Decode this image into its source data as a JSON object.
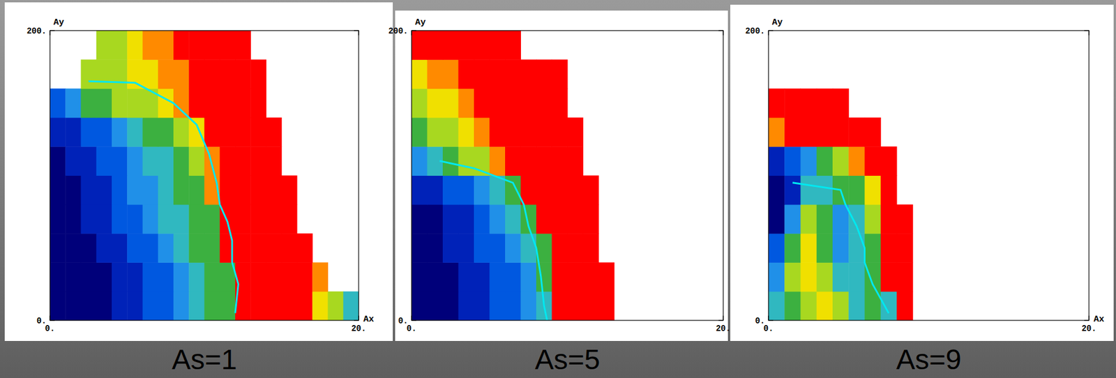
{
  "chart_data": [
    {
      "type": "heatmap",
      "title": "As=1",
      "x_label": "Ax",
      "y_label": "Ay",
      "xlim": [
        0,
        20
      ],
      "ylim": [
        0,
        200
      ],
      "xticks": [
        {
          "value": 0,
          "label": "0."
        },
        {
          "value": 20,
          "label": "20."
        }
      ],
      "yticks": [
        {
          "value": 0,
          "label": "0."
        },
        {
          "value": 200,
          "label": "200."
        }
      ],
      "xbins": [
        0,
        1,
        2,
        3,
        4,
        5,
        6,
        7,
        8,
        9,
        10,
        11,
        12,
        13,
        14,
        15,
        16,
        17,
        18,
        19,
        20
      ],
      "ybins": [
        0,
        20,
        40,
        60,
        80,
        100,
        120,
        140,
        160,
        180,
        200
      ],
      "zlim": [
        0,
        9
      ],
      "cells": [
        [
          0,
          0,
          0,
          0,
          1,
          1,
          2,
          2,
          3,
          4,
          5,
          5,
          9,
          9,
          9,
          9,
          9,
          7,
          6,
          4
        ],
        [
          0,
          0,
          0,
          0,
          1,
          1,
          2,
          2,
          3,
          4,
          5,
          5,
          9,
          9,
          9,
          9,
          9,
          8,
          null,
          null
        ],
        [
          0,
          0,
          0,
          1,
          1,
          2,
          2,
          3,
          4,
          5,
          5,
          9,
          9,
          9,
          9,
          9,
          9,
          null,
          null,
          null
        ],
        [
          0,
          0,
          1,
          1,
          2,
          2,
          3,
          4,
          4,
          5,
          5,
          9,
          9,
          9,
          9,
          9,
          null,
          null,
          null,
          null
        ],
        [
          0,
          0,
          1,
          1,
          2,
          3,
          3,
          4,
          5,
          5,
          8,
          9,
          9,
          9,
          9,
          9,
          null,
          null,
          null,
          null
        ],
        [
          0,
          1,
          1,
          2,
          2,
          3,
          4,
          4,
          5,
          6,
          8,
          9,
          9,
          9,
          9,
          null,
          null,
          null,
          null,
          null
        ],
        [
          1,
          1,
          2,
          2,
          3,
          4,
          5,
          5,
          6,
          7,
          9,
          9,
          9,
          9,
          9,
          null,
          null,
          null,
          null,
          null
        ],
        [
          2,
          3,
          5,
          5,
          6,
          6,
          6,
          7,
          8,
          9,
          9,
          9,
          9,
          9,
          null,
          null,
          null,
          null,
          null,
          null
        ],
        [
          null,
          null,
          6,
          6,
          6,
          7,
          7,
          8,
          8,
          9,
          9,
          9,
          9,
          9,
          null,
          null,
          null,
          null,
          null,
          null
        ],
        [
          null,
          null,
          null,
          6,
          6,
          7,
          8,
          8,
          9,
          9,
          9,
          9,
          9,
          null,
          null,
          null,
          null,
          null,
          null,
          null
        ]
      ],
      "series": [
        {
          "type": "line",
          "color": "#00e8f0",
          "x": [
            2.5,
            5.5,
            8,
            9.5,
            10.3,
            10.8,
            11,
            11.5,
            11.8,
            11.8,
            12.2,
            12
          ],
          "values": [
            165,
            164,
            150,
            135,
            115,
            95,
            80,
            68,
            55,
            40,
            25,
            5
          ]
        }
      ]
    },
    {
      "type": "heatmap",
      "title": "As=5",
      "y_label": "Ay",
      "xlim": [
        0,
        20
      ],
      "ylim": [
        0,
        200
      ],
      "xticks": [
        {
          "value": 0,
          "label": "0."
        },
        {
          "value": 20,
          "label": "20."
        }
      ],
      "yticks": [
        {
          "value": 0,
          "label": "0."
        },
        {
          "value": 200,
          "label": "200."
        }
      ],
      "xbins": [
        0,
        1,
        2,
        3,
        4,
        5,
        6,
        7,
        8,
        9,
        10,
        11,
        12,
        13,
        14,
        15,
        16,
        17,
        18,
        19,
        20
      ],
      "ybins": [
        0,
        20,
        40,
        60,
        80,
        100,
        120,
        140,
        160,
        180,
        200
      ],
      "zlim": [
        0,
        9
      ],
      "cells": [
        [
          0,
          0,
          0,
          1,
          1,
          2,
          2,
          3,
          4,
          9,
          9,
          9,
          9,
          null,
          null,
          null,
          null,
          null,
          null,
          null
        ],
        [
          0,
          0,
          0,
          1,
          1,
          2,
          2,
          3,
          5,
          9,
          9,
          9,
          9,
          null,
          null,
          null,
          null,
          null,
          null,
          null
        ],
        [
          0,
          0,
          1,
          1,
          2,
          2,
          3,
          4,
          5,
          9,
          9,
          9,
          null,
          null,
          null,
          null,
          null,
          null,
          null,
          null
        ],
        [
          0,
          0,
          1,
          1,
          2,
          3,
          4,
          5,
          9,
          9,
          9,
          9,
          null,
          null,
          null,
          null,
          null,
          null,
          null,
          null
        ],
        [
          1,
          1,
          2,
          2,
          3,
          4,
          5,
          9,
          9,
          9,
          9,
          9,
          null,
          null,
          null,
          null,
          null,
          null,
          null,
          null
        ],
        [
          3,
          4,
          5,
          6,
          6,
          8,
          9,
          9,
          9,
          9,
          9,
          null,
          null,
          null,
          null,
          null,
          null,
          null,
          null,
          null
        ],
        [
          5,
          6,
          6,
          7,
          8,
          9,
          9,
          9,
          9,
          9,
          9,
          null,
          null,
          null,
          null,
          null,
          null,
          null,
          null,
          null
        ],
        [
          6,
          7,
          7,
          8,
          9,
          9,
          9,
          9,
          9,
          9,
          null,
          null,
          null,
          null,
          null,
          null,
          null,
          null,
          null,
          null
        ],
        [
          7,
          8,
          8,
          9,
          9,
          9,
          9,
          9,
          9,
          9,
          null,
          null,
          null,
          null,
          null,
          null,
          null,
          null,
          null,
          null
        ],
        [
          9,
          9,
          9,
          9,
          9,
          9,
          9,
          null,
          null,
          null,
          null,
          null,
          null,
          null,
          null,
          null,
          null,
          null,
          null,
          null
        ]
      ],
      "series": [
        {
          "type": "line",
          "color": "#00e8f0",
          "x": [
            1.8,
            4,
            6.5,
            7.2,
            7.5,
            8,
            8.3,
            8.5,
            8.7
          ],
          "values": [
            110,
            105,
            95,
            80,
            65,
            50,
            30,
            10,
            0
          ]
        }
      ]
    },
    {
      "type": "heatmap",
      "title": "As=9",
      "x_label": "Ax",
      "y_label": "Ay",
      "xlim": [
        0,
        20
      ],
      "ylim": [
        0,
        200
      ],
      "xticks": [
        {
          "value": 0,
          "label": "0."
        },
        {
          "value": 20,
          "label": "20."
        }
      ],
      "yticks": [
        {
          "value": 0,
          "label": "0."
        },
        {
          "value": 200,
          "label": "200."
        }
      ],
      "xbins": [
        0,
        1,
        2,
        3,
        4,
        5,
        6,
        7,
        8,
        9,
        10,
        11,
        12,
        13,
        14,
        15,
        16,
        17,
        18,
        19,
        20
      ],
      "ybins": [
        0,
        20,
        40,
        60,
        80,
        100,
        120,
        140,
        160,
        180,
        200
      ],
      "zlim": [
        0,
        9
      ],
      "cells": [
        [
          4,
          5,
          6,
          7,
          6,
          4,
          5,
          4,
          9,
          null,
          null,
          null,
          null,
          null,
          null,
          null,
          null,
          null,
          null,
          null
        ],
        [
          3,
          6,
          7,
          6,
          4,
          4,
          5,
          9,
          9,
          null,
          null,
          null,
          null,
          null,
          null,
          null,
          null,
          null,
          null,
          null
        ],
        [
          2,
          5,
          7,
          5,
          3,
          4,
          5,
          9,
          9,
          null,
          null,
          null,
          null,
          null,
          null,
          null,
          null,
          null,
          null,
          null
        ],
        [
          0,
          3,
          6,
          5,
          3,
          4,
          6,
          9,
          9,
          null,
          null,
          null,
          null,
          null,
          null,
          null,
          null,
          null,
          null,
          null
        ],
        [
          0,
          1,
          4,
          4,
          5,
          5,
          7,
          9,
          null,
          null,
          null,
          null,
          null,
          null,
          null,
          null,
          null,
          null,
          null,
          null
        ],
        [
          1,
          2,
          3,
          5,
          6,
          8,
          9,
          9,
          null,
          null,
          null,
          null,
          null,
          null,
          null,
          null,
          null,
          null,
          null,
          null
        ],
        [
          8,
          9,
          9,
          9,
          9,
          9,
          9,
          null,
          null,
          null,
          null,
          null,
          null,
          null,
          null,
          null,
          null,
          null,
          null,
          null
        ],
        [
          9,
          9,
          9,
          9,
          9,
          null,
          null,
          null,
          null,
          null,
          null,
          null,
          null,
          null,
          null,
          null,
          null,
          null,
          null,
          null
        ],
        [
          null,
          null,
          null,
          null,
          null,
          null,
          null,
          null,
          null,
          null,
          null,
          null,
          null,
          null,
          null,
          null,
          null,
          null,
          null,
          null
        ],
        [
          null,
          null,
          null,
          null,
          null,
          null,
          null,
          null,
          null,
          null,
          null,
          null,
          null,
          null,
          null,
          null,
          null,
          null,
          null,
          null
        ]
      ],
      "series": [
        {
          "type": "line",
          "color": "#00e8f0",
          "x": [
            1.5,
            4.5,
            4.8,
            5.5,
            6,
            6,
            6.5,
            7,
            7.5
          ],
          "values": [
            95,
            90,
            80,
            65,
            50,
            40,
            25,
            15,
            5
          ]
        }
      ]
    }
  ]
}
